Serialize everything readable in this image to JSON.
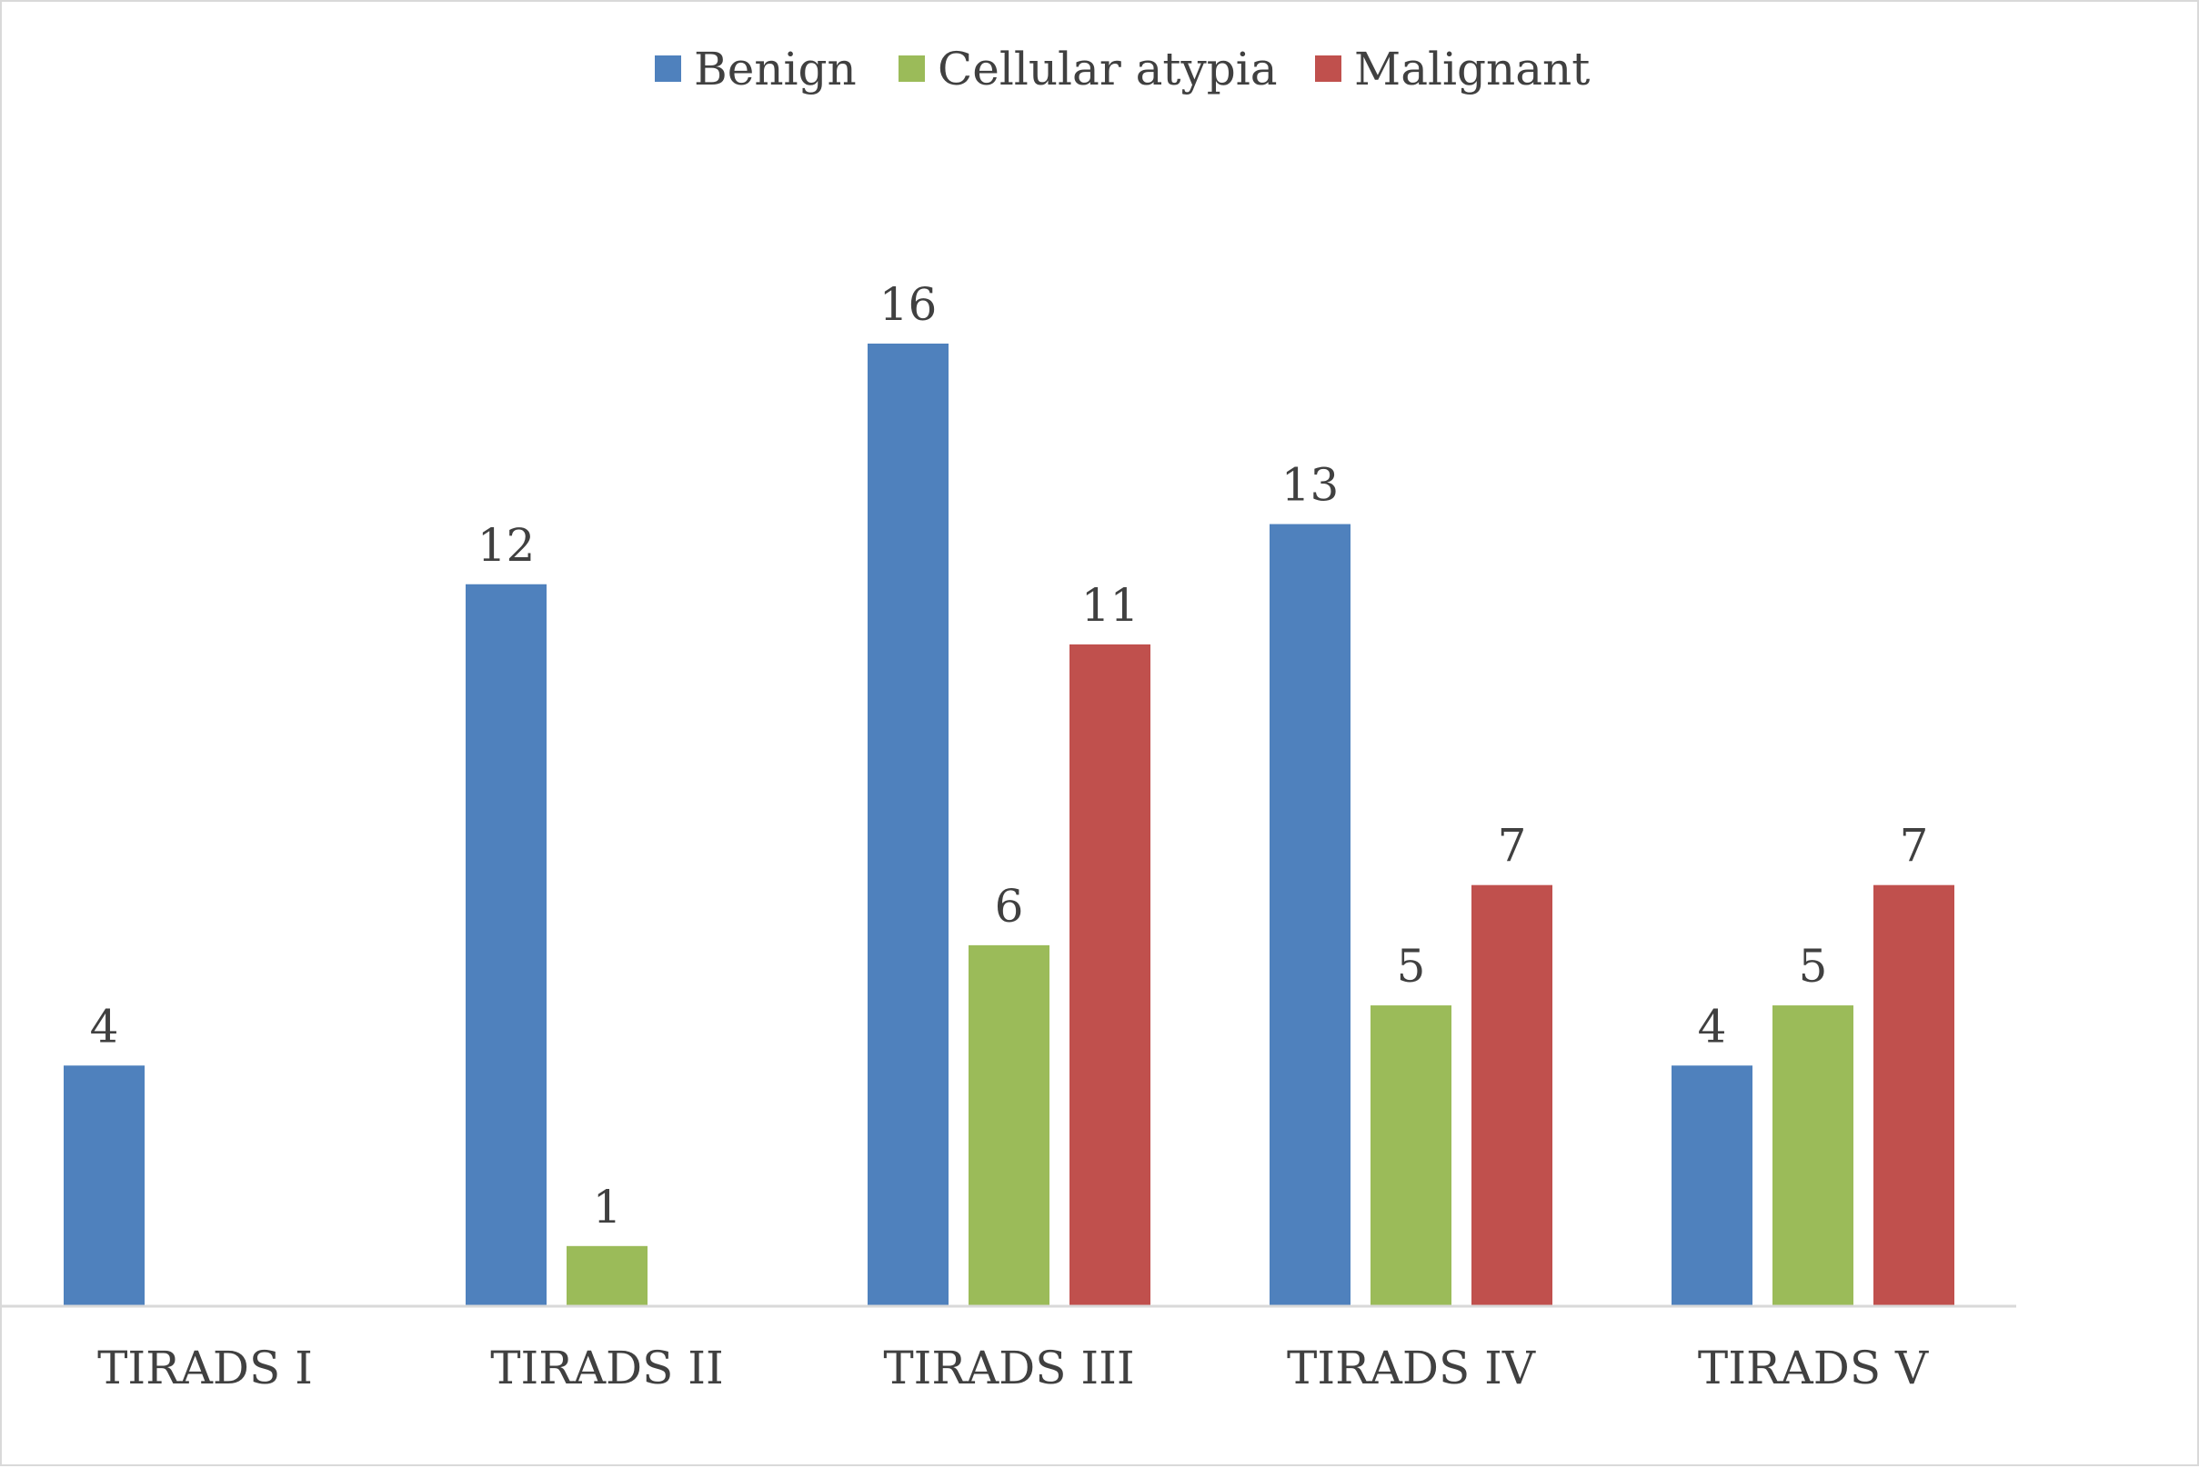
{
  "chart_data": {
    "type": "bar",
    "title": "",
    "xlabel": "",
    "ylabel": "",
    "categories": [
      "TIRADS I",
      "TIRADS II",
      "TIRADS III",
      "TIRADS IV",
      "TIRADS V"
    ],
    "series": [
      {
        "name": "Benign",
        "color": "#4F81BD",
        "values": [
          4,
          12,
          16,
          13,
          4
        ]
      },
      {
        "name": "Cellular atypia",
        "color": "#9BBB59",
        "values": [
          null,
          1,
          6,
          5,
          5
        ]
      },
      {
        "name": "Malignant",
        "color": "#C0504D",
        "values": [
          null,
          null,
          11,
          7,
          7
        ]
      }
    ],
    "ylim": [
      0,
      16
    ],
    "grid": false,
    "legend_position": "top",
    "data_labels": true
  }
}
